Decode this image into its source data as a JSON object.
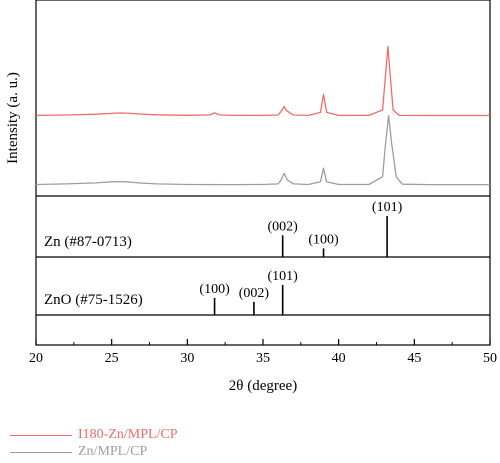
{
  "chart_data": {
    "type": "line",
    "xlabel": "2θ (degree)",
    "ylabel": "Intensity (a. u.)",
    "xlim": [
      20,
      50
    ],
    "xticks": [
      20,
      25,
      30,
      35,
      40,
      45,
      50
    ],
    "grid": false,
    "legend_placement": "bottom-left",
    "series": [
      {
        "name": "I180-Zn/MPL/CP",
        "color": "#f26b6b",
        "x": [
          20,
          22,
          24,
          25,
          25.5,
          26,
          26.5,
          27,
          28,
          30,
          31.5,
          31.8,
          32.1,
          33,
          35,
          36,
          36.25,
          36.4,
          36.55,
          37,
          38,
          38.8,
          39.0,
          39.2,
          40,
          42,
          42.9,
          43.1,
          43.25,
          43.4,
          43.6,
          44,
          46,
          48,
          50
        ],
        "values": [
          0.5,
          0.8,
          1.5,
          2.2,
          2.5,
          2.4,
          2.0,
          1.6,
          1.0,
          0.6,
          0.9,
          2.6,
          0.9,
          0.5,
          0.5,
          0.8,
          4.5,
          8.0,
          4.5,
          0.8,
          0.5,
          3.0,
          18.0,
          3.0,
          0.5,
          0.5,
          5.0,
          35.0,
          58.0,
          35.0,
          5.0,
          0.5,
          0.4,
          0.4,
          0.4
        ]
      },
      {
        "name": "Zn/MPL/CP",
        "color": "#9e9e9e",
        "x": [
          20,
          22,
          24,
          25,
          25.5,
          26,
          26.5,
          27,
          28,
          30,
          33,
          35,
          36,
          36.2,
          36.4,
          36.6,
          37,
          38,
          38.8,
          39.0,
          39.2,
          40,
          42,
          42.9,
          43.1,
          43.3,
          43.5,
          43.8,
          44.2,
          46,
          48,
          50
        ],
        "values": [
          0.5,
          1.0,
          2.0,
          3.0,
          3.2,
          3.0,
          2.4,
          1.8,
          1.0,
          0.5,
          0.4,
          0.5,
          1.0,
          5.0,
          11.0,
          5.0,
          1.0,
          0.5,
          3.0,
          16.0,
          3.0,
          0.5,
          0.5,
          8.0,
          40.0,
          66.0,
          40.0,
          8.0,
          0.8,
          0.4,
          0.4,
          0.4
        ]
      }
    ],
    "references": [
      {
        "name": "Zn (#87-0713)",
        "peaks": [
          {
            "x": 36.3,
            "intensity": 0.53,
            "hkl": "(002)"
          },
          {
            "x": 39.0,
            "intensity": 0.21,
            "hkl": "(100)"
          },
          {
            "x": 43.2,
            "intensity": 1.0,
            "hkl": "(101)"
          }
        ]
      },
      {
        "name": "ZnO (#75-1526)",
        "peaks": [
          {
            "x": 31.8,
            "intensity": 0.57,
            "hkl": "(100)"
          },
          {
            "x": 34.4,
            "intensity": 0.44,
            "hkl": "(002)"
          },
          {
            "x": 36.3,
            "intensity": 1.0,
            "hkl": "(101)"
          }
        ]
      }
    ]
  }
}
